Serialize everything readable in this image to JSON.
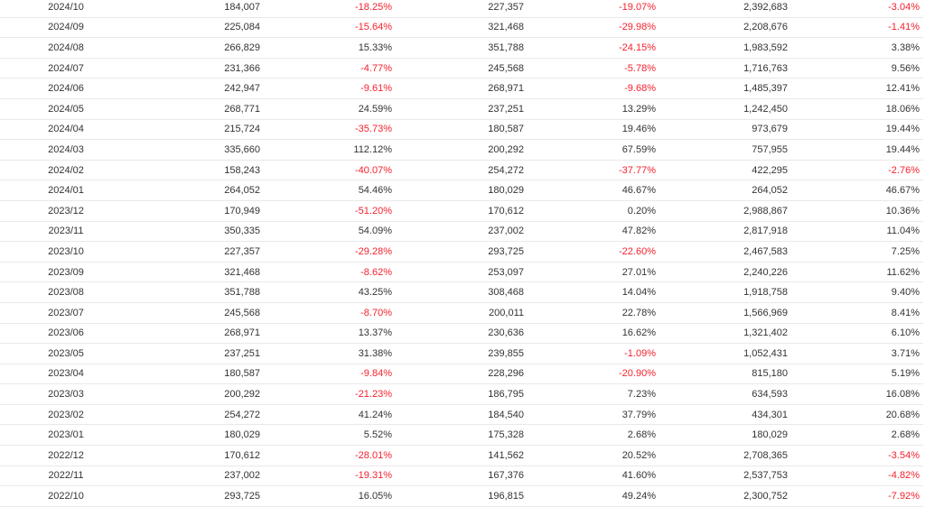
{
  "colors": {
    "text": "#333333",
    "negative": "#f5222d",
    "divider": "#e9e9e9"
  },
  "rows": [
    {
      "month": "2024/10",
      "value": "184,007",
      "mom": "-18.25%",
      "last_year": "227,357",
      "yoy": "-19.07%",
      "cumulative": "2,392,683",
      "cumulative_yoy": "-3.04%"
    },
    {
      "month": "2024/09",
      "value": "225,084",
      "mom": "-15.64%",
      "last_year": "321,468",
      "yoy": "-29.98%",
      "cumulative": "2,208,676",
      "cumulative_yoy": "-1.41%"
    },
    {
      "month": "2024/08",
      "value": "266,829",
      "mom": "15.33%",
      "last_year": "351,788",
      "yoy": "-24.15%",
      "cumulative": "1,983,592",
      "cumulative_yoy": "3.38%"
    },
    {
      "month": "2024/07",
      "value": "231,366",
      "mom": "-4.77%",
      "last_year": "245,568",
      "yoy": "-5.78%",
      "cumulative": "1,716,763",
      "cumulative_yoy": "9.56%"
    },
    {
      "month": "2024/06",
      "value": "242,947",
      "mom": "-9.61%",
      "last_year": "268,971",
      "yoy": "-9.68%",
      "cumulative": "1,485,397",
      "cumulative_yoy": "12.41%"
    },
    {
      "month": "2024/05",
      "value": "268,771",
      "mom": "24.59%",
      "last_year": "237,251",
      "yoy": "13.29%",
      "cumulative": "1,242,450",
      "cumulative_yoy": "18.06%"
    },
    {
      "month": "2024/04",
      "value": "215,724",
      "mom": "-35.73%",
      "last_year": "180,587",
      "yoy": "19.46%",
      "cumulative": "973,679",
      "cumulative_yoy": "19.44%"
    },
    {
      "month": "2024/03",
      "value": "335,660",
      "mom": "112.12%",
      "last_year": "200,292",
      "yoy": "67.59%",
      "cumulative": "757,955",
      "cumulative_yoy": "19.44%"
    },
    {
      "month": "2024/02",
      "value": "158,243",
      "mom": "-40.07%",
      "last_year": "254,272",
      "yoy": "-37.77%",
      "cumulative": "422,295",
      "cumulative_yoy": "-2.76%"
    },
    {
      "month": "2024/01",
      "value": "264,052",
      "mom": "54.46%",
      "last_year": "180,029",
      "yoy": "46.67%",
      "cumulative": "264,052",
      "cumulative_yoy": "46.67%"
    },
    {
      "month": "2023/12",
      "value": "170,949",
      "mom": "-51.20%",
      "last_year": "170,612",
      "yoy": "0.20%",
      "cumulative": "2,988,867",
      "cumulative_yoy": "10.36%"
    },
    {
      "month": "2023/11",
      "value": "350,335",
      "mom": "54.09%",
      "last_year": "237,002",
      "yoy": "47.82%",
      "cumulative": "2,817,918",
      "cumulative_yoy": "11.04%"
    },
    {
      "month": "2023/10",
      "value": "227,357",
      "mom": "-29.28%",
      "last_year": "293,725",
      "yoy": "-22.60%",
      "cumulative": "2,467,583",
      "cumulative_yoy": "7.25%"
    },
    {
      "month": "2023/09",
      "value": "321,468",
      "mom": "-8.62%",
      "last_year": "253,097",
      "yoy": "27.01%",
      "cumulative": "2,240,226",
      "cumulative_yoy": "11.62%"
    },
    {
      "month": "2023/08",
      "value": "351,788",
      "mom": "43.25%",
      "last_year": "308,468",
      "yoy": "14.04%",
      "cumulative": "1,918,758",
      "cumulative_yoy": "9.40%"
    },
    {
      "month": "2023/07",
      "value": "245,568",
      "mom": "-8.70%",
      "last_year": "200,011",
      "yoy": "22.78%",
      "cumulative": "1,566,969",
      "cumulative_yoy": "8.41%"
    },
    {
      "month": "2023/06",
      "value": "268,971",
      "mom": "13.37%",
      "last_year": "230,636",
      "yoy": "16.62%",
      "cumulative": "1,321,402",
      "cumulative_yoy": "6.10%"
    },
    {
      "month": "2023/05",
      "value": "237,251",
      "mom": "31.38%",
      "last_year": "239,855",
      "yoy": "-1.09%",
      "cumulative": "1,052,431",
      "cumulative_yoy": "3.71%"
    },
    {
      "month": "2023/04",
      "value": "180,587",
      "mom": "-9.84%",
      "last_year": "228,296",
      "yoy": "-20.90%",
      "cumulative": "815,180",
      "cumulative_yoy": "5.19%"
    },
    {
      "month": "2023/03",
      "value": "200,292",
      "mom": "-21.23%",
      "last_year": "186,795",
      "yoy": "7.23%",
      "cumulative": "634,593",
      "cumulative_yoy": "16.08%"
    },
    {
      "month": "2023/02",
      "value": "254,272",
      "mom": "41.24%",
      "last_year": "184,540",
      "yoy": "37.79%",
      "cumulative": "434,301",
      "cumulative_yoy": "20.68%"
    },
    {
      "month": "2023/01",
      "value": "180,029",
      "mom": "5.52%",
      "last_year": "175,328",
      "yoy": "2.68%",
      "cumulative": "180,029",
      "cumulative_yoy": "2.68%"
    },
    {
      "month": "2022/12",
      "value": "170,612",
      "mom": "-28.01%",
      "last_year": "141,562",
      "yoy": "20.52%",
      "cumulative": "2,708,365",
      "cumulative_yoy": "-3.54%"
    },
    {
      "month": "2022/11",
      "value": "237,002",
      "mom": "-19.31%",
      "last_year": "167,376",
      "yoy": "41.60%",
      "cumulative": "2,537,753",
      "cumulative_yoy": "-4.82%"
    },
    {
      "month": "2022/10",
      "value": "293,725",
      "mom": "16.05%",
      "last_year": "196,815",
      "yoy": "49.24%",
      "cumulative": "2,300,752",
      "cumulative_yoy": "-7.92%"
    }
  ]
}
